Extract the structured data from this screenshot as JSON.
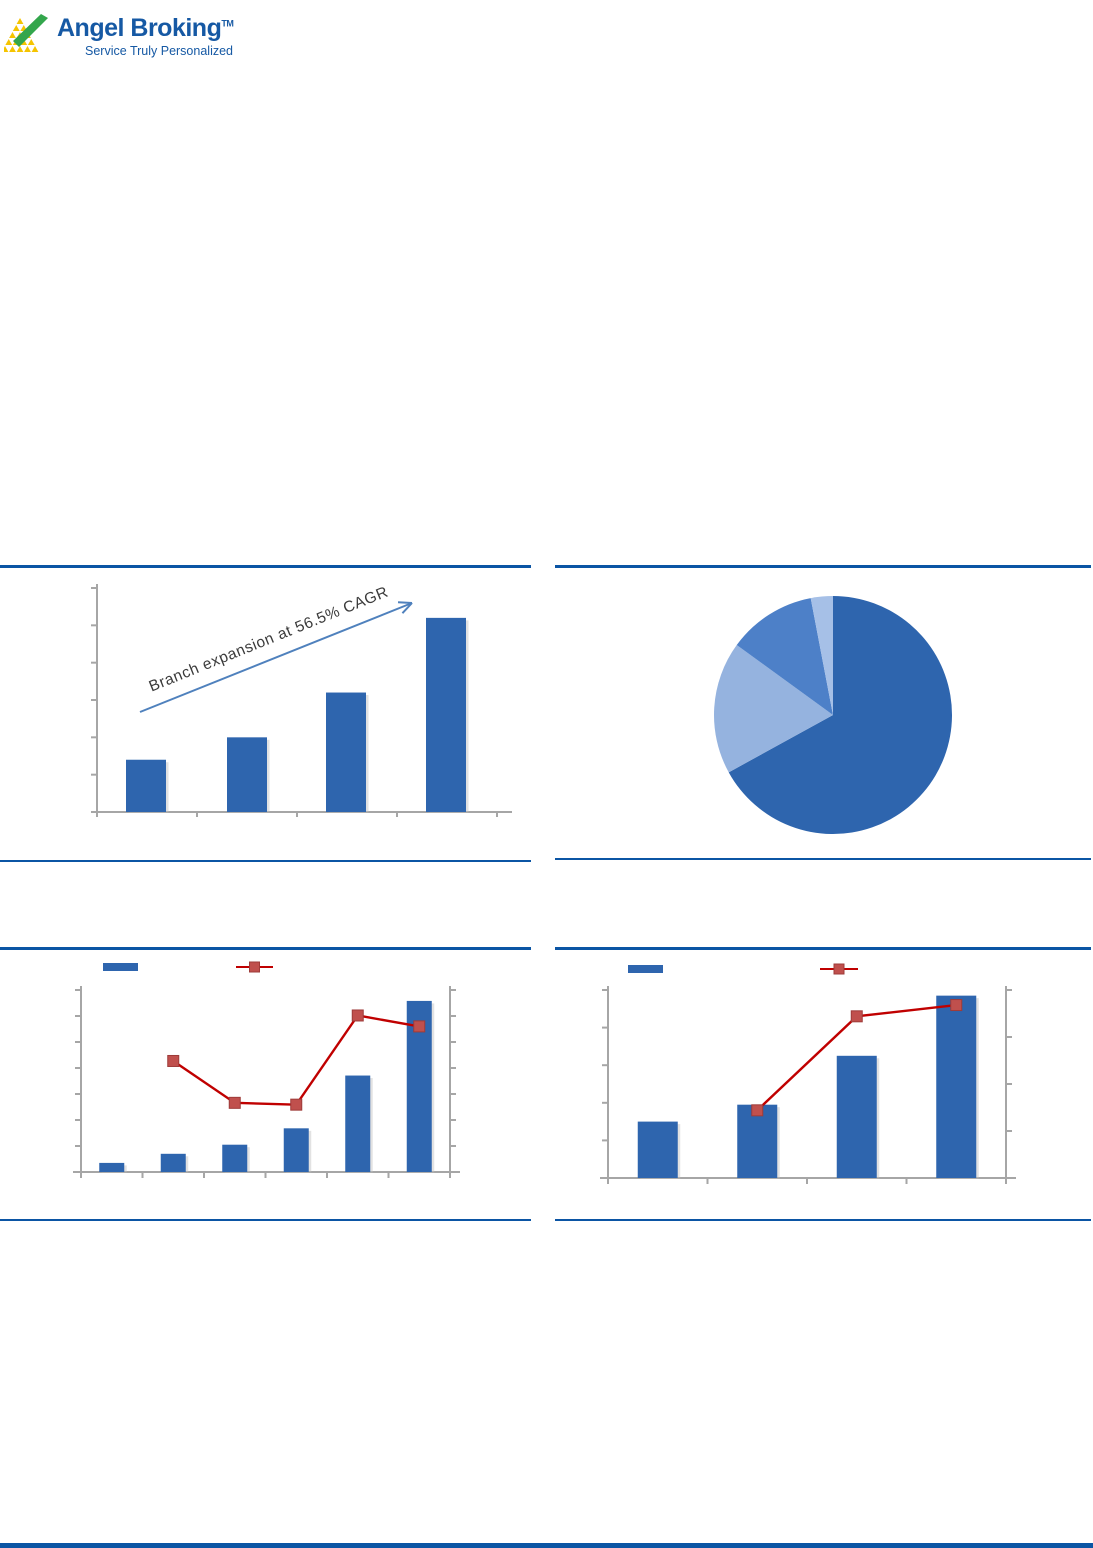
{
  "logo": {
    "brand": "Angel Broking",
    "trademark": "TM",
    "tagline": "Service Truly Personalized"
  },
  "colors": {
    "divider_blue": "#0B55A4",
    "bar_blue": "#2E65AE",
    "line_red": "#C00000",
    "marker_red": "#C0504D",
    "axis_gray": "#A6A6A6",
    "annotation_arrow_blue": "#4F81BD"
  },
  "chart_data": [
    {
      "id": "branch-expansion",
      "type": "bar",
      "values": [
        1.4,
        2.0,
        3.2,
        5.2
      ],
      "ylim": [
        0,
        6
      ],
      "y_tick_count": 7,
      "x_tick_count": 5,
      "grid": false,
      "annotation": "Branch expansion at 56.5% CAGR",
      "bar_color": "#2E65AE",
      "axis_tick_labels_visible": false
    },
    {
      "id": "segment-pie",
      "type": "pie",
      "values": [
        67,
        18,
        12,
        3
      ],
      "colors": [
        "#2E65AE",
        "#95B3DF",
        "#4D80C8",
        "#A6C0E7"
      ],
      "start_angle_deg": 0,
      "direction": "clockwise",
      "labels_visible": false
    },
    {
      "id": "combo-six-bars",
      "type": "bar+line",
      "series": [
        {
          "name": "bars",
          "axis": "left",
          "values": [
            5,
            10,
            15,
            24,
            53,
            94
          ],
          "color": "#2E65AE"
        },
        {
          "name": "line",
          "axis": "right",
          "values": [
            null,
            61,
            38,
            37,
            86,
            80
          ],
          "color": "#C00000",
          "marker": "square",
          "marker_color": "#C0504D"
        }
      ],
      "ylim_left": [
        0,
        100
      ],
      "ylim_right": [
        0,
        100
      ],
      "left_tick_count": 8,
      "right_tick_count": 8,
      "x_tick_count": 7,
      "legend_position": "top",
      "legend_labels": [
        "",
        ""
      ],
      "axis_tick_labels_visible": false
    },
    {
      "id": "combo-four-bars",
      "type": "bar+line",
      "series": [
        {
          "name": "bars",
          "axis": "left",
          "values": [
            30,
            39,
            65,
            97
          ],
          "color": "#2E65AE"
        },
        {
          "name": "line",
          "axis": "right",
          "values": [
            null,
            36,
            86,
            92
          ],
          "color": "#C00000",
          "marker": "square",
          "marker_color": "#C0504D"
        }
      ],
      "ylim_left": [
        0,
        100
      ],
      "ylim_right": [
        0,
        100
      ],
      "left_tick_count": 6,
      "right_tick_count": 5,
      "x_tick_count": 5,
      "legend_position": "top",
      "legend_labels": [
        "",
        ""
      ],
      "axis_tick_labels_visible": false
    }
  ]
}
